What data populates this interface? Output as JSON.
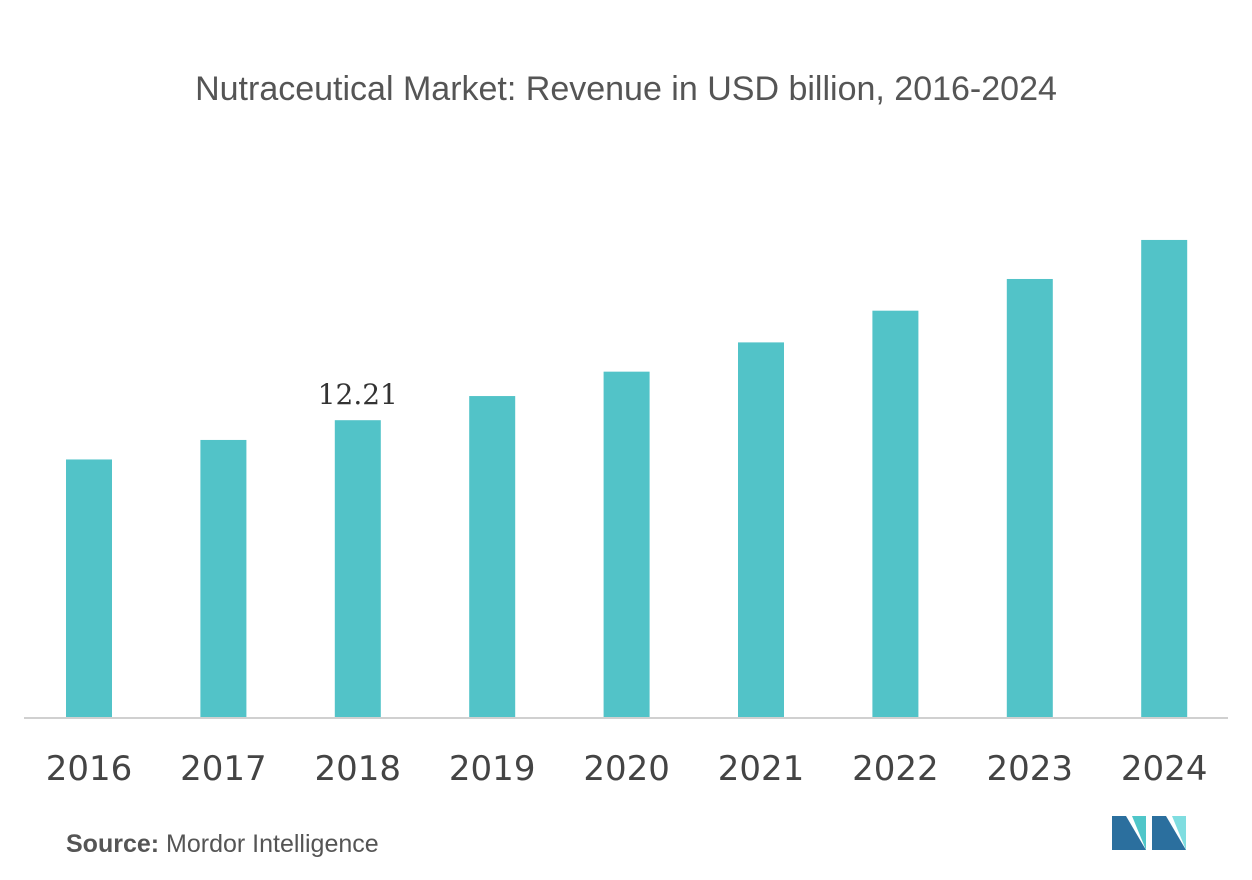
{
  "chart_data": {
    "type": "bar",
    "title": "Nutraceutical Market: Revenue in USD billion, 2016-2024",
    "xlabel": "",
    "ylabel": "",
    "categories": [
      "2016",
      "2017",
      "2018",
      "2019",
      "2020",
      "2021",
      "2022",
      "2023",
      "2024"
    ],
    "values": [
      10.6,
      11.4,
      12.21,
      13.2,
      14.2,
      15.4,
      16.7,
      18.0,
      19.6
    ],
    "data_labels": [
      {
        "category": "2018",
        "text": "12.21"
      }
    ],
    "ylim": [
      0,
      20.5
    ],
    "grid": false,
    "legend": "none",
    "bar_color": "#52c3c8",
    "axis_color": "#d0d0d0"
  },
  "footer": {
    "source_label": "Source:",
    "source_text": " Mordor Intelligence"
  },
  "logo": {
    "icon": "mordor-intelligence-logo-icon",
    "colors": [
      "#2b6f9e",
      "#4fc6c9",
      "#7fdde0"
    ]
  }
}
